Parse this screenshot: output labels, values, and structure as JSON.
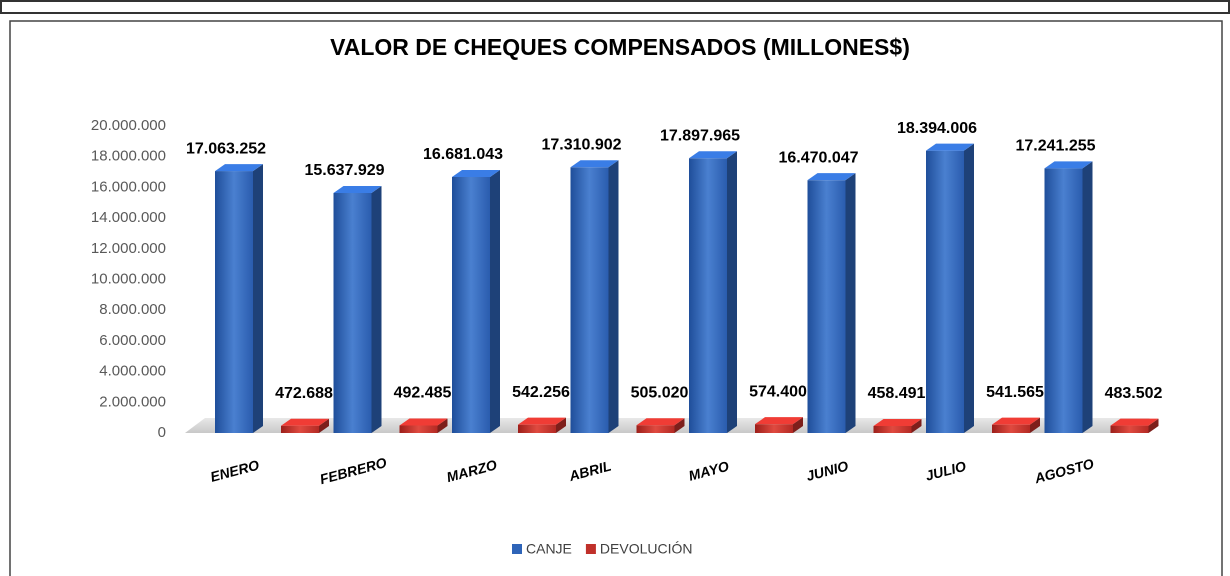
{
  "chart_data": {
    "type": "bar3d",
    "title": "VALOR DE CHEQUES COMPENSADOS (MILLONES$)",
    "categories": [
      "ENERO",
      "FEBRERO",
      "MARZO",
      "ABRIL",
      "MAYO",
      "JUNIO",
      "JULIO",
      "AGOSTO"
    ],
    "series": [
      {
        "name": "CANJE",
        "color": "#2e64b8",
        "values": [
          17063252,
          15637929,
          16681043,
          17310902,
          17897965,
          16470047,
          18394006,
          17241255
        ],
        "value_labels": [
          "17.063.252",
          "15.637.929",
          "16.681.043",
          "17.310.902",
          "17.897.965",
          "16.470.047",
          "18.394.006",
          "17.241.255"
        ]
      },
      {
        "name": "DEVOLUCIÓN",
        "color": "#c0302a",
        "values": [
          472688,
          492485,
          542256,
          505020,
          574400,
          458491,
          541565,
          483502
        ],
        "value_labels": [
          "472.688",
          "492.485",
          "542.256",
          "505.020",
          "574.400",
          "458.491",
          "541.565",
          "483.502"
        ]
      }
    ],
    "ylim": [
      0,
      20000000
    ],
    "yticks": [
      0,
      {
        "value": 2000000,
        "label": "2.000.000"
      },
      {
        "value": 4000000,
        "label": "4.000.000"
      },
      {
        "value": 6000000,
        "label": "6.000.000"
      },
      {
        "value": 8000000,
        "label": "8.000.000"
      },
      {
        "value": 10000000,
        "label": "10.000.000"
      },
      {
        "value": 12000000,
        "label": "12.000.000"
      },
      {
        "value": 14000000,
        "label": "14.000.000"
      },
      {
        "value": 16000000,
        "label": "16.000.000"
      },
      {
        "value": 18000000,
        "label": "18.000.000"
      },
      {
        "value": 20000000,
        "label": "20.000.000"
      }
    ],
    "legend": "bottom"
  }
}
